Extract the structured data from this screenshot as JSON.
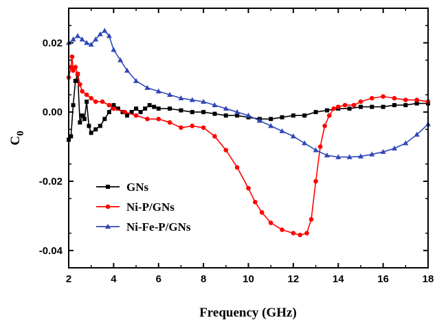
{
  "chart_data": {
    "type": "line",
    "xlabel": "Frequency (GHz)",
    "ylabel_base": "C",
    "ylabel_sub": "0",
    "xlim": [
      2,
      18
    ],
    "ylim": [
      -0.045,
      0.03
    ],
    "xticks": [
      2,
      4,
      6,
      8,
      10,
      12,
      14,
      16,
      18
    ],
    "xtick_labels": [
      "2",
      "4",
      "6",
      "8",
      "10",
      "12",
      "14",
      "16",
      "18"
    ],
    "yticks": [
      -0.04,
      -0.02,
      0.0,
      0.02
    ],
    "ytick_labels": [
      "-0.04",
      "-0.02",
      "0.00",
      "0.02"
    ],
    "legend_position": "lower-left",
    "series": [
      {
        "name": "GNs",
        "color": "#000000",
        "marker": "square",
        "x": [
          2.0,
          2.1,
          2.2,
          2.3,
          2.4,
          2.5,
          2.6,
          2.7,
          2.8,
          2.9,
          3.0,
          3.2,
          3.4,
          3.6,
          3.8,
          4.0,
          4.2,
          4.4,
          4.6,
          4.8,
          5.0,
          5.2,
          5.4,
          5.6,
          5.8,
          6.0,
          6.5,
          7.0,
          7.5,
          8.0,
          8.5,
          9.0,
          9.5,
          10.0,
          10.5,
          11.0,
          11.5,
          12.0,
          12.5,
          13.0,
          13.5,
          14.0,
          14.5,
          15.0,
          15.5,
          16.0,
          16.5,
          17.0,
          17.5,
          18.0
        ],
        "y": [
          -0.008,
          -0.007,
          0.002,
          0.009,
          0.011,
          -0.003,
          -0.001,
          -0.002,
          0.003,
          -0.004,
          -0.006,
          -0.005,
          -0.004,
          -0.002,
          0.0,
          0.002,
          0.001,
          0.0,
          -0.001,
          0.0,
          0.001,
          0.0,
          0.001,
          0.002,
          0.0015,
          0.001,
          0.001,
          0.0005,
          0.0,
          0.0,
          -0.0005,
          -0.001,
          -0.001,
          -0.0015,
          -0.002,
          -0.002,
          -0.0015,
          -0.001,
          -0.001,
          0.0,
          0.0005,
          0.001,
          0.001,
          0.0015,
          0.0015,
          0.0015,
          0.002,
          0.002,
          0.0025,
          0.0025
        ]
      },
      {
        "name": "Ni-P/GNs",
        "color": "#ff0000",
        "marker": "circle",
        "x": [
          2.0,
          2.1,
          2.15,
          2.2,
          2.3,
          2.4,
          2.5,
          2.6,
          2.8,
          3.0,
          3.2,
          3.5,
          3.8,
          4.0,
          4.5,
          5.0,
          5.5,
          6.0,
          6.5,
          7.0,
          7.5,
          8.0,
          8.5,
          9.0,
          9.5,
          10.0,
          10.3,
          10.6,
          11.0,
          11.5,
          12.0,
          12.3,
          12.6,
          12.8,
          13.0,
          13.2,
          13.4,
          13.6,
          13.8,
          14.0,
          14.3,
          14.7,
          15.0,
          15.5,
          16.0,
          16.5,
          17.0,
          17.5,
          18.0
        ],
        "y": [
          0.01,
          0.013,
          0.016,
          0.012,
          0.013,
          0.011,
          0.008,
          0.006,
          0.005,
          0.004,
          0.003,
          0.003,
          0.002,
          0.001,
          0.0,
          -0.001,
          -0.002,
          -0.002,
          -0.003,
          -0.0045,
          -0.004,
          -0.0045,
          -0.007,
          -0.011,
          -0.016,
          -0.022,
          -0.026,
          -0.029,
          -0.032,
          -0.034,
          -0.035,
          -0.0355,
          -0.035,
          -0.031,
          -0.02,
          -0.01,
          -0.004,
          -0.001,
          0.001,
          0.0015,
          0.002,
          0.002,
          0.003,
          0.004,
          0.0045,
          0.004,
          0.0035,
          0.0035,
          0.003
        ]
      },
      {
        "name": "Ni-Fe-P/GNs",
        "color": "#3046b8",
        "marker": "triangle",
        "x": [
          2.0,
          2.2,
          2.4,
          2.6,
          2.8,
          3.0,
          3.2,
          3.4,
          3.6,
          3.8,
          4.0,
          4.3,
          4.6,
          5.0,
          5.5,
          6.0,
          6.5,
          7.0,
          7.5,
          8.0,
          8.5,
          9.0,
          9.5,
          10.0,
          10.5,
          11.0,
          11.5,
          12.0,
          12.5,
          13.0,
          13.5,
          14.0,
          14.5,
          15.0,
          15.5,
          16.0,
          16.5,
          17.0,
          17.5,
          18.0
        ],
        "y": [
          0.02,
          0.021,
          0.022,
          0.021,
          0.02,
          0.0195,
          0.021,
          0.0225,
          0.0235,
          0.022,
          0.018,
          0.015,
          0.012,
          0.009,
          0.007,
          0.006,
          0.005,
          0.004,
          0.0035,
          0.003,
          0.002,
          0.001,
          0.0,
          -0.001,
          -0.0025,
          -0.004,
          -0.0055,
          -0.007,
          -0.009,
          -0.011,
          -0.0125,
          -0.013,
          -0.013,
          -0.0128,
          -0.0122,
          -0.0115,
          -0.0105,
          -0.009,
          -0.0065,
          -0.0035
        ]
      }
    ]
  }
}
